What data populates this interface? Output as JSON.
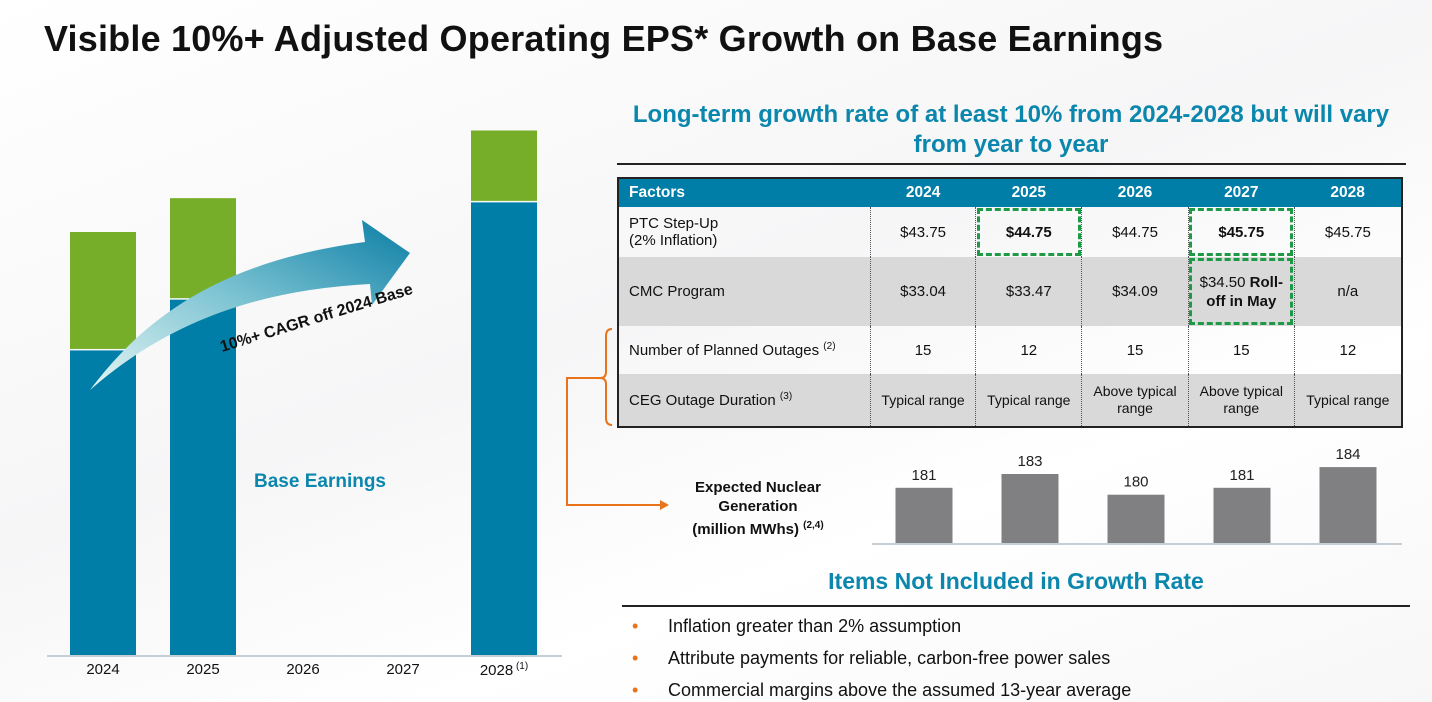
{
  "title": "Visible 10%+ Adjusted Operating EPS* Growth on Base Earnings",
  "subtitle": "Long-term growth rate of at least 10% from 2024-2028 but will vary from year to year",
  "chart_data": [
    {
      "type": "bar",
      "stacked": true,
      "categories": [
        "2024",
        "2025",
        "2026",
        "2027",
        "2028"
      ],
      "category_notes": [
        "",
        "",
        "",
        "",
        "(1)"
      ],
      "series": [
        {
          "name": "Base Earnings",
          "values": [
            72,
            84,
            null,
            null,
            107
          ],
          "color": "#007ea7"
        },
        {
          "values": [
            28,
            24,
            null,
            null,
            17
          ],
          "color": "#76ae2a"
        }
      ],
      "annotation": "10%+ CAGR off 2024 Base",
      "grid": false
    },
    {
      "type": "bar",
      "title": "Expected Nuclear Generation (million MWhs)",
      "title_lines": [
        "Expected Nuclear",
        "Generation",
        "(million MWhs)"
      ],
      "title_note": "(2,4)",
      "categories": [
        "2024",
        "2025",
        "2026",
        "2027",
        "2028"
      ],
      "values": [
        181,
        183,
        180,
        181,
        184
      ],
      "ylim": [
        173,
        186
      ],
      "color": "#808083"
    }
  ],
  "table": {
    "headers": [
      "Factors",
      "2024",
      "2025",
      "2026",
      "2027",
      "2028"
    ],
    "rows": [
      {
        "label": "PTC Step-Up",
        "label2": "(2% Inflation)",
        "note": "",
        "cells": [
          "$43.75",
          "$44.75",
          "$44.75",
          "$45.75",
          "$45.75"
        ]
      },
      {
        "label": "CMC Program",
        "label2": "",
        "note": "",
        "cells": [
          "$33.04",
          "$33.47",
          "$34.09",
          "$34.50",
          "n/a"
        ],
        "extra": "Roll-off in May"
      },
      {
        "label": "Number of Planned Outages",
        "label2": "",
        "note": "(2)",
        "cells": [
          "15",
          "12",
          "15",
          "15",
          "12"
        ]
      },
      {
        "label": "CEG Outage Duration",
        "label2": "",
        "note": "(3)",
        "cells": [
          "Typical range",
          "Typical range",
          "Above typical range",
          "Above typical range",
          "Typical range"
        ]
      }
    ],
    "highlight_color": "#1e9a47"
  },
  "items_title": "Items Not Included in Growth Rate",
  "items": [
    "Inflation greater than 2% assumption",
    "Attribute payments for reliable, carbon-free power sales",
    "Commercial margins above the assumed 13-year average"
  ],
  "colors": {
    "accent": "#0b86ad",
    "orange": "#e8731a",
    "green": "#76ae2a",
    "teal": "#007ea7"
  }
}
